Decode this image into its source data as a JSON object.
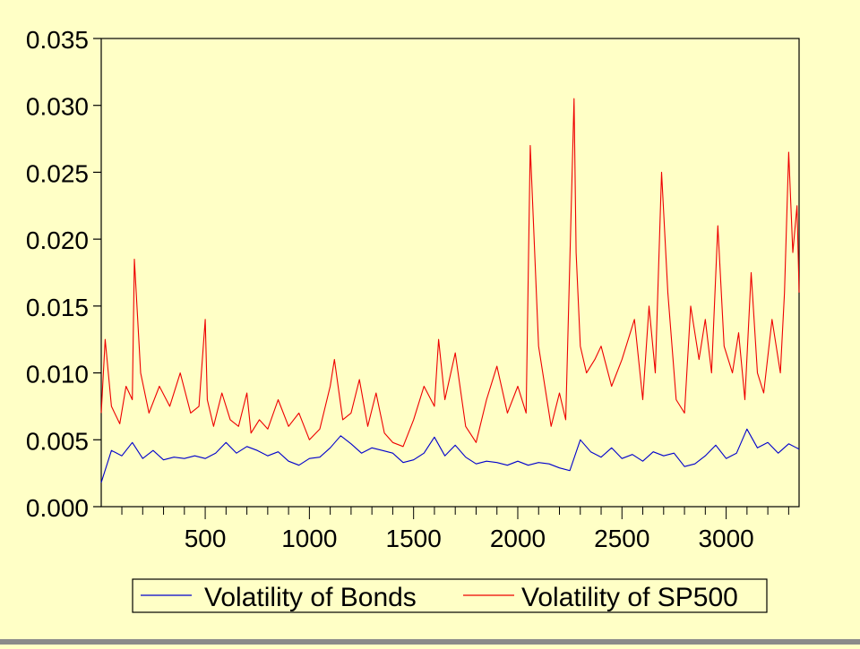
{
  "colors": {
    "background": "#ffffc6",
    "bonds": "#0000cc",
    "sp500": "#ee0000",
    "axis": "#000000"
  },
  "chart_data": {
    "type": "line",
    "title": "",
    "xlabel": "",
    "ylabel": "",
    "xlim": [
      1,
      3350
    ],
    "ylim": [
      0.0,
      0.035
    ],
    "x_ticks": [
      500,
      1000,
      1500,
      2000,
      2500,
      3000
    ],
    "y_ticks": [
      "0.000",
      "0.005",
      "0.010",
      "0.015",
      "0.020",
      "0.025",
      "0.030",
      "0.035"
    ],
    "grid": false,
    "legend_position": "bottom",
    "legend": [
      "Volatility of Bonds",
      "Volatility of SP500"
    ],
    "series": [
      {
        "name": "Volatility of Bonds",
        "color": "#0000cc",
        "x": [
          1,
          50,
          100,
          150,
          200,
          250,
          300,
          350,
          400,
          450,
          500,
          550,
          600,
          650,
          700,
          750,
          800,
          850,
          900,
          950,
          1000,
          1050,
          1100,
          1150,
          1200,
          1250,
          1300,
          1350,
          1400,
          1450,
          1500,
          1550,
          1600,
          1650,
          1700,
          1750,
          1800,
          1850,
          1900,
          1950,
          2000,
          2050,
          2100,
          2150,
          2200,
          2250,
          2300,
          2350,
          2400,
          2450,
          2500,
          2550,
          2600,
          2650,
          2700,
          2750,
          2800,
          2850,
          2900,
          2950,
          3000,
          3050,
          3100,
          3150,
          3200,
          3250,
          3300,
          3350
        ],
        "values": [
          0.0018,
          0.0042,
          0.0038,
          0.0048,
          0.0036,
          0.0042,
          0.0035,
          0.0037,
          0.0036,
          0.0038,
          0.0036,
          0.004,
          0.0048,
          0.004,
          0.0045,
          0.0042,
          0.0038,
          0.0041,
          0.0034,
          0.0031,
          0.0036,
          0.0037,
          0.0044,
          0.0053,
          0.0047,
          0.004,
          0.0044,
          0.0042,
          0.004,
          0.0033,
          0.0035,
          0.004,
          0.0052,
          0.0038,
          0.0046,
          0.0037,
          0.0032,
          0.0034,
          0.0033,
          0.0031,
          0.0034,
          0.0031,
          0.0033,
          0.0032,
          0.0029,
          0.0027,
          0.005,
          0.0041,
          0.0037,
          0.0044,
          0.0036,
          0.0039,
          0.0034,
          0.0041,
          0.0038,
          0.004,
          0.003,
          0.0032,
          0.0038,
          0.0046,
          0.0036,
          0.004,
          0.0058,
          0.0044,
          0.0048,
          0.004,
          0.0047,
          0.0043
        ]
      },
      {
        "name": "Volatility of SP500",
        "color": "#ee0000",
        "x": [
          1,
          20,
          50,
          90,
          120,
          150,
          160,
          190,
          230,
          280,
          330,
          380,
          430,
          470,
          500,
          510,
          540,
          580,
          620,
          660,
          700,
          720,
          760,
          800,
          850,
          900,
          950,
          1000,
          1050,
          1100,
          1120,
          1160,
          1200,
          1240,
          1280,
          1320,
          1360,
          1400,
          1450,
          1500,
          1550,
          1600,
          1620,
          1650,
          1700,
          1750,
          1800,
          1850,
          1900,
          1950,
          2000,
          2040,
          2060,
          2100,
          2130,
          2160,
          2200,
          2230,
          2270,
          2280,
          2300,
          2330,
          2370,
          2400,
          2450,
          2500,
          2560,
          2600,
          2630,
          2660,
          2690,
          2720,
          2760,
          2800,
          2830,
          2870,
          2900,
          2930,
          2960,
          2990,
          3030,
          3060,
          3090,
          3120,
          3150,
          3180,
          3220,
          3260,
          3280,
          3300,
          3320,
          3340,
          3350
        ],
        "values": [
          0.007,
          0.0125,
          0.0075,
          0.0062,
          0.009,
          0.008,
          0.0185,
          0.01,
          0.007,
          0.009,
          0.0075,
          0.01,
          0.007,
          0.0075,
          0.014,
          0.008,
          0.006,
          0.0085,
          0.0065,
          0.006,
          0.0085,
          0.0055,
          0.0065,
          0.0058,
          0.008,
          0.006,
          0.007,
          0.005,
          0.0058,
          0.009,
          0.011,
          0.0065,
          0.007,
          0.0095,
          0.006,
          0.0085,
          0.0055,
          0.0048,
          0.0045,
          0.0065,
          0.009,
          0.0075,
          0.0125,
          0.008,
          0.0115,
          0.006,
          0.0048,
          0.008,
          0.0105,
          0.007,
          0.009,
          0.007,
          0.027,
          0.012,
          0.009,
          0.006,
          0.0085,
          0.0065,
          0.0305,
          0.019,
          0.012,
          0.01,
          0.011,
          0.012,
          0.009,
          0.011,
          0.014,
          0.008,
          0.015,
          0.01,
          0.025,
          0.016,
          0.008,
          0.007,
          0.015,
          0.011,
          0.014,
          0.01,
          0.021,
          0.012,
          0.01,
          0.013,
          0.008,
          0.0175,
          0.01,
          0.0085,
          0.014,
          0.01,
          0.016,
          0.0265,
          0.019,
          0.0225,
          0.016
        ]
      }
    ]
  }
}
